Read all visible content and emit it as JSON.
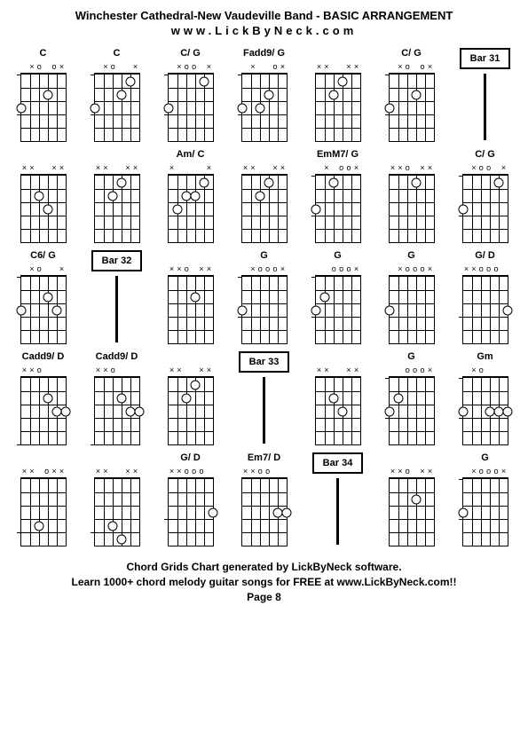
{
  "title": "Winchester Cathedral-New Vaudeville Band - BASIC ARRANGEMENT",
  "subtitle": "www.LickByNeck.com",
  "footer_line1": "Chord Grids Chart generated by LickByNeck software.",
  "footer_line2": "Learn 1000+ chord melody guitar songs for FREE at www.LickByNeck.com!!",
  "footer_line3": "Page 8",
  "colors": {
    "bg": "#ffffff",
    "fg": "#000000"
  },
  "diagram": {
    "strings": 6,
    "frets": 5,
    "width": 50,
    "height": 75
  },
  "rows": [
    [
      {
        "type": "chord",
        "name": "C",
        "markers": [
          "",
          "×",
          "o",
          "",
          "o",
          "×"
        ],
        "dots": [
          {
            "s": 0,
            "f": 3
          },
          {
            "s": 3,
            "f": 2
          }
        ],
        "ticks": [
          0,
          3
        ]
      },
      {
        "type": "chord",
        "name": "C",
        "markers": [
          "",
          "×",
          "o",
          "",
          "",
          "×"
        ],
        "dots": [
          {
            "s": 0,
            "f": 3
          },
          {
            "s": 3,
            "f": 2
          },
          {
            "s": 4,
            "f": 1
          }
        ],
        "ticks": [
          0,
          3
        ]
      },
      {
        "type": "chord",
        "name": "C/ G",
        "markers": [
          "",
          "×",
          "o",
          "o",
          "",
          "×"
        ],
        "dots": [
          {
            "s": 0,
            "f": 3
          },
          {
            "s": 4,
            "f": 1
          }
        ],
        "ticks": [
          0,
          3
        ]
      },
      {
        "type": "chord",
        "name": "Fadd9/ G",
        "markers": [
          "",
          "×",
          "",
          "",
          "o",
          "×"
        ],
        "dots": [
          {
            "s": 0,
            "f": 3
          },
          {
            "s": 2,
            "f": 3
          },
          {
            "s": 3,
            "f": 2
          }
        ],
        "ticks": [
          0,
          3
        ]
      },
      {
        "type": "chord",
        "name": "",
        "markers": [
          "×",
          "×",
          "",
          "",
          "×",
          "×"
        ],
        "dots": [
          {
            "s": 2,
            "f": 2
          },
          {
            "s": 3,
            "f": 1
          }
        ],
        "ticks": []
      },
      {
        "type": "chord",
        "name": "C/ G",
        "markers": [
          "",
          "×",
          "o",
          "",
          "o",
          "×"
        ],
        "dots": [
          {
            "s": 0,
            "f": 3
          },
          {
            "s": 3,
            "f": 2
          }
        ],
        "ticks": [
          0,
          3
        ]
      },
      {
        "type": "bar",
        "label": "Bar 31"
      }
    ],
    [
      {
        "type": "chord",
        "name": "",
        "markers": [
          "×",
          "×",
          "",
          "",
          "×",
          "×"
        ],
        "dots": [
          {
            "s": 2,
            "f": 2
          },
          {
            "s": 3,
            "f": 3
          }
        ],
        "ticks": []
      },
      {
        "type": "chord",
        "name": "",
        "markers": [
          "×",
          "×",
          "",
          "",
          "×",
          "×"
        ],
        "dots": [
          {
            "s": 2,
            "f": 2
          },
          {
            "s": 3,
            "f": 1
          }
        ],
        "ticks": []
      },
      {
        "type": "chord",
        "name": "Am/ C",
        "markers": [
          "×",
          "",
          "",
          "",
          "",
          "×"
        ],
        "dots": [
          {
            "s": 1,
            "f": 3
          },
          {
            "s": 2,
            "f": 2
          },
          {
            "s": 3,
            "f": 2
          },
          {
            "s": 4,
            "f": 1
          }
        ],
        "ticks": []
      },
      {
        "type": "chord",
        "name": "",
        "markers": [
          "×",
          "×",
          "",
          "",
          "×",
          "×"
        ],
        "dots": [
          {
            "s": 2,
            "f": 2
          },
          {
            "s": 3,
            "f": 1
          }
        ],
        "ticks": []
      },
      {
        "type": "chord",
        "name": "EmM7/ G",
        "markers": [
          "",
          "×",
          "",
          "o",
          "o",
          "×"
        ],
        "dots": [
          {
            "s": 0,
            "f": 3
          },
          {
            "s": 2,
            "f": 1
          }
        ],
        "ticks": [
          0,
          3
        ]
      },
      {
        "type": "chord",
        "name": "",
        "markers": [
          "×",
          "×",
          "o",
          "",
          "×",
          "×"
        ],
        "dots": [
          {
            "s": 3,
            "f": 1
          }
        ],
        "ticks": []
      },
      {
        "type": "chord",
        "name": "C/ G",
        "markers": [
          "",
          "×",
          "o",
          "o",
          "",
          "×"
        ],
        "dots": [
          {
            "s": 0,
            "f": 3
          },
          {
            "s": 4,
            "f": 1
          }
        ],
        "ticks": [
          0,
          3
        ]
      }
    ],
    [
      {
        "type": "chord",
        "name": "C6/ G",
        "markers": [
          "",
          "×",
          "o",
          "",
          "",
          "×"
        ],
        "dots": [
          {
            "s": 0,
            "f": 3
          },
          {
            "s": 3,
            "f": 2
          },
          {
            "s": 4,
            "f": 3
          }
        ],
        "ticks": [
          0
        ]
      },
      {
        "type": "bar",
        "label": "Bar 32"
      },
      {
        "type": "chord",
        "name": "",
        "markers": [
          "×",
          "×",
          "o",
          "",
          "×",
          "×"
        ],
        "dots": [
          {
            "s": 3,
            "f": 2
          }
        ],
        "ticks": []
      },
      {
        "type": "chord",
        "name": "G",
        "markers": [
          "",
          "×",
          "o",
          "o",
          "o",
          "×"
        ],
        "dots": [
          {
            "s": 0,
            "f": 3
          }
        ],
        "ticks": [
          0,
          3
        ]
      },
      {
        "type": "chord",
        "name": "G",
        "markers": [
          "",
          "",
          "o",
          "o",
          "o",
          "×"
        ],
        "dots": [
          {
            "s": 0,
            "f": 3
          },
          {
            "s": 1,
            "f": 2
          }
        ],
        "ticks": [
          0,
          3
        ]
      },
      {
        "type": "chord",
        "name": "G",
        "markers": [
          "",
          "×",
          "o",
          "o",
          "o",
          "×"
        ],
        "dots": [
          {
            "s": 0,
            "f": 3
          }
        ],
        "ticks": []
      },
      {
        "type": "chord",
        "name": "G/ D",
        "markers": [
          "×",
          "×",
          "o",
          "o",
          "o",
          ""
        ],
        "dots": [
          {
            "s": 5,
            "f": 3
          }
        ],
        "ticks": [
          3
        ]
      }
    ],
    [
      {
        "type": "chord",
        "name": "Cadd9/ D",
        "markers": [
          "×",
          "×",
          "o",
          "",
          "",
          ""
        ],
        "dots": [
          {
            "s": 3,
            "f": 2
          },
          {
            "s": 4,
            "f": 3
          },
          {
            "s": 5,
            "f": 3
          }
        ],
        "ticks": [
          5
        ]
      },
      {
        "type": "chord",
        "name": "Cadd9/ D",
        "markers": [
          "×",
          "×",
          "o",
          "",
          "",
          ""
        ],
        "dots": [
          {
            "s": 3,
            "f": 2
          },
          {
            "s": 4,
            "f": 3
          },
          {
            "s": 5,
            "f": 3
          }
        ],
        "ticks": [
          5
        ]
      },
      {
        "type": "chord",
        "name": "",
        "markers": [
          "×",
          "×",
          "",
          "",
          "×",
          "×"
        ],
        "dots": [
          {
            "s": 2,
            "f": 2
          },
          {
            "s": 3,
            "f": 1
          }
        ],
        "ticks": []
      },
      {
        "type": "bar",
        "label": "Bar 33"
      },
      {
        "type": "chord",
        "name": "",
        "markers": [
          "×",
          "×",
          "",
          "",
          "×",
          "×"
        ],
        "dots": [
          {
            "s": 2,
            "f": 2
          },
          {
            "s": 3,
            "f": 3
          }
        ],
        "ticks": []
      },
      {
        "type": "chord",
        "name": "G",
        "markers": [
          "",
          "",
          "o",
          "o",
          "o",
          "×"
        ],
        "dots": [
          {
            "s": 0,
            "f": 3
          },
          {
            "s": 1,
            "f": 2
          }
        ],
        "ticks": [
          0,
          3
        ]
      },
      {
        "type": "chord",
        "name": "Gm",
        "markers": [
          "",
          "×",
          "o",
          "",
          "",
          ""
        ],
        "dots": [
          {
            "s": 0,
            "f": 3
          },
          {
            "s": 3,
            "f": 3
          },
          {
            "s": 4,
            "f": 3
          },
          {
            "s": 5,
            "f": 3
          }
        ],
        "ticks": [
          0,
          3
        ]
      }
    ],
    [
      {
        "type": "chord",
        "name": "",
        "markers": [
          "×",
          "×",
          "",
          "o",
          "×",
          "×"
        ],
        "dots": [
          {
            "s": 2,
            "f": 4
          }
        ],
        "ticks": [
          4
        ]
      },
      {
        "type": "chord",
        "name": "",
        "markers": [
          "×",
          "×",
          "",
          "",
          "×",
          "×"
        ],
        "dots": [
          {
            "s": 2,
            "f": 4
          },
          {
            "s": 3,
            "f": 5
          }
        ],
        "ticks": [
          4
        ]
      },
      {
        "type": "chord",
        "name": "G/ D",
        "markers": [
          "×",
          "×",
          "o",
          "o",
          "o",
          ""
        ],
        "dots": [
          {
            "s": 5,
            "f": 3
          }
        ],
        "ticks": [
          3
        ]
      },
      {
        "type": "chord",
        "name": "Em7/ D",
        "markers": [
          "×",
          "×",
          "o",
          "o",
          "",
          ""
        ],
        "dots": [
          {
            "s": 4,
            "f": 3
          },
          {
            "s": 5,
            "f": 3
          }
        ],
        "ticks": []
      },
      {
        "type": "bar",
        "label": "Bar 34"
      },
      {
        "type": "chord",
        "name": "",
        "markers": [
          "×",
          "×",
          "o",
          "",
          "×",
          "×"
        ],
        "dots": [
          {
            "s": 3,
            "f": 2
          }
        ],
        "ticks": []
      },
      {
        "type": "chord",
        "name": "G",
        "markers": [
          "",
          "×",
          "o",
          "o",
          "o",
          "×"
        ],
        "dots": [
          {
            "s": 0,
            "f": 3
          }
        ],
        "ticks": [
          0,
          3
        ]
      }
    ]
  ]
}
